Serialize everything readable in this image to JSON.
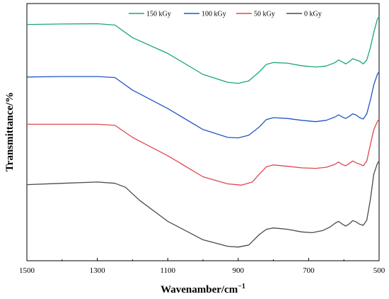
{
  "chart_data": {
    "type": "line",
    "xlabel": "Wavenamber/cm",
    "xlabel_superscript": "−1",
    "ylabel": "Transmittance/%",
    "xlim": [
      1500,
      500
    ],
    "x_reversed": true,
    "xticks": [
      1500,
      1300,
      1100,
      900,
      700,
      500
    ],
    "xtick_labels": [
      "1500",
      "1300",
      "1100",
      "900",
      "700",
      "500"
    ],
    "y_ticks_shown": false,
    "grid": false,
    "legend_position": "top-center",
    "legend_orientation": "horizontal",
    "note": "",
    "series": [
      {
        "name": "150 kGy",
        "color": "#1aa86e",
        "points": [
          [
            1500,
            85
          ],
          [
            1400,
            85.2
          ],
          [
            1300,
            85.3
          ],
          [
            1250,
            84.8
          ],
          [
            1200,
            80
          ],
          [
            1100,
            74
          ],
          [
            1000,
            66
          ],
          [
            930,
            63
          ],
          [
            900,
            62.6
          ],
          [
            870,
            63.5
          ],
          [
            840,
            67
          ],
          [
            820,
            69.8
          ],
          [
            800,
            70.5
          ],
          [
            760,
            70.3
          ],
          [
            720,
            69.3
          ],
          [
            680,
            68.8
          ],
          [
            650,
            69.2
          ],
          [
            625,
            70.5
          ],
          [
            615,
            71.5
          ],
          [
            605,
            70.8
          ],
          [
            595,
            70
          ],
          [
            585,
            70.8
          ],
          [
            575,
            72
          ],
          [
            565,
            71.5
          ],
          [
            555,
            71
          ],
          [
            545,
            70
          ],
          [
            535,
            71.5
          ],
          [
            525,
            76
          ],
          [
            515,
            82
          ],
          [
            505,
            87
          ],
          [
            500,
            88
          ]
        ]
      },
      {
        "name": "100 kGy",
        "color": "#2255c4",
        "points": [
          [
            1500,
            65
          ],
          [
            1400,
            65.2
          ],
          [
            1300,
            65.2
          ],
          [
            1250,
            64.8
          ],
          [
            1200,
            60
          ],
          [
            1100,
            53
          ],
          [
            1000,
            45
          ],
          [
            930,
            42
          ],
          [
            900,
            41.8
          ],
          [
            870,
            42.8
          ],
          [
            840,
            46
          ],
          [
            820,
            48.8
          ],
          [
            800,
            49.5
          ],
          [
            760,
            49.2
          ],
          [
            720,
            48.5
          ],
          [
            680,
            48
          ],
          [
            650,
            48.5
          ],
          [
            625,
            49.8
          ],
          [
            615,
            50.6
          ],
          [
            605,
            49.8
          ],
          [
            595,
            49.2
          ],
          [
            585,
            50
          ],
          [
            575,
            51
          ],
          [
            565,
            50.5
          ],
          [
            555,
            49.5
          ],
          [
            545,
            49
          ],
          [
            535,
            51
          ],
          [
            525,
            56
          ],
          [
            515,
            62
          ],
          [
            505,
            66
          ],
          [
            500,
            67
          ]
        ]
      },
      {
        "name": "50 kGy",
        "color": "#e0474c",
        "points": [
          [
            1500,
            47
          ],
          [
            1400,
            47
          ],
          [
            1300,
            47
          ],
          [
            1250,
            46.6
          ],
          [
            1200,
            42
          ],
          [
            1100,
            35
          ],
          [
            1000,
            27
          ],
          [
            930,
            24.3
          ],
          [
            890,
            23.8
          ],
          [
            860,
            25
          ],
          [
            840,
            28
          ],
          [
            820,
            30.8
          ],
          [
            800,
            31.5
          ],
          [
            760,
            31
          ],
          [
            720,
            30.4
          ],
          [
            680,
            30.2
          ],
          [
            650,
            30.6
          ],
          [
            625,
            31.8
          ],
          [
            615,
            32.6
          ],
          [
            605,
            31.7
          ],
          [
            595,
            31.2
          ],
          [
            585,
            32
          ],
          [
            575,
            33
          ],
          [
            565,
            32.3
          ],
          [
            555,
            31.8
          ],
          [
            545,
            31.2
          ],
          [
            535,
            33
          ],
          [
            525,
            39
          ],
          [
            515,
            45
          ],
          [
            505,
            48
          ],
          [
            500,
            49
          ]
        ]
      },
      {
        "name": "0 kGy",
        "color": "#4a4a4a",
        "points": [
          [
            1500,
            24
          ],
          [
            1400,
            24.5
          ],
          [
            1300,
            25
          ],
          [
            1250,
            24.5
          ],
          [
            1220,
            23
          ],
          [
            1180,
            18
          ],
          [
            1100,
            10
          ],
          [
            1000,
            3
          ],
          [
            930,
            0.5
          ],
          [
            900,
            0.2
          ],
          [
            870,
            1
          ],
          [
            840,
            5
          ],
          [
            820,
            7
          ],
          [
            800,
            7.5
          ],
          [
            760,
            7
          ],
          [
            720,
            6
          ],
          [
            690,
            5.7
          ],
          [
            660,
            6.5
          ],
          [
            640,
            7.8
          ],
          [
            625,
            9.3
          ],
          [
            615,
            10
          ],
          [
            605,
            9
          ],
          [
            595,
            8.2
          ],
          [
            585,
            9
          ],
          [
            575,
            10.3
          ],
          [
            565,
            9.8
          ],
          [
            555,
            8.9
          ],
          [
            545,
            8.5
          ],
          [
            535,
            10.5
          ],
          [
            525,
            18
          ],
          [
            515,
            28
          ],
          [
            505,
            32
          ],
          [
            500,
            33
          ]
        ]
      }
    ]
  }
}
